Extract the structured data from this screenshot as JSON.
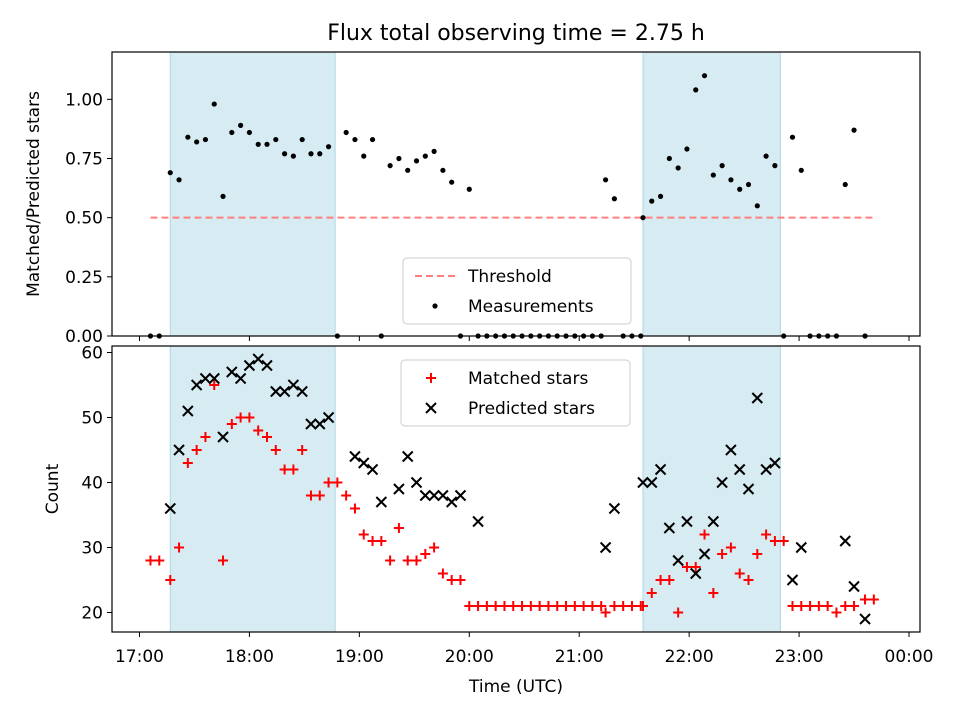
{
  "figure": {
    "title": "Flux total observing time = 2.75 h",
    "xlabel": "Time (UTC)"
  },
  "colors": {
    "shade": "#add8e6",
    "threshold": "#ff7f7f",
    "matched": "#ff0000",
    "predicted": "#000000",
    "measurement": "#000000"
  },
  "x_tick_labels": [
    "17:00",
    "18:00",
    "19:00",
    "20:00",
    "21:00",
    "22:00",
    "23:00",
    "00:00"
  ],
  "chart_data": [
    {
      "type": "scatter",
      "ylabel": "Matched/Predicted stars",
      "x_unit": "hours after 17:00 UTC",
      "xlim": [
        -0.25,
        7.1
      ],
      "ylim": [
        0,
        1.2
      ],
      "y_ticks": [
        "0.00",
        "0.25",
        "0.50",
        "0.75",
        "1.00"
      ],
      "y_tick_values": [
        0,
        0.25,
        0.5,
        0.75,
        1.0
      ],
      "shaded_spans": [
        [
          0.28,
          1.78
        ],
        [
          4.58,
          5.83
        ]
      ],
      "threshold": {
        "label": "Threshold",
        "value": 0.5,
        "x_range": [
          0.1,
          6.7
        ]
      },
      "legend": {
        "position": "lower center",
        "entries": [
          "Threshold",
          "Measurements"
        ]
      },
      "series": [
        {
          "name": "Measurements",
          "x": [
            0.1,
            0.18,
            0.28,
            0.36,
            0.44,
            0.52,
            0.6,
            0.68,
            0.76,
            0.84,
            0.92,
            1.0,
            1.08,
            1.16,
            1.24,
            1.32,
            1.4,
            1.48,
            1.56,
            1.64,
            1.72,
            1.8,
            1.88,
            1.96,
            2.04,
            2.12,
            2.2,
            2.28,
            2.36,
            2.44,
            2.52,
            2.6,
            2.68,
            2.76,
            2.84,
            2.92,
            3.0,
            3.08,
            3.16,
            3.24,
            3.32,
            3.4,
            3.48,
            3.56,
            3.64,
            3.72,
            3.8,
            3.88,
            3.96,
            4.04,
            4.12,
            4.2,
            4.24,
            4.32,
            4.4,
            4.48,
            4.56,
            4.58,
            4.66,
            4.74,
            4.82,
            4.9,
            4.98,
            5.06,
            5.14,
            5.22,
            5.3,
            5.38,
            5.46,
            5.54,
            5.62,
            5.7,
            5.78,
            5.86,
            5.94,
            6.02,
            6.1,
            6.18,
            6.26,
            6.34,
            6.42,
            6.5,
            6.6
          ],
          "y": [
            0,
            0,
            0.69,
            0.66,
            0.84,
            0.82,
            0.83,
            0.98,
            0.59,
            0.86,
            0.89,
            0.86,
            0.81,
            0.81,
            0.83,
            0.77,
            0.76,
            0.83,
            0.77,
            0.77,
            0.8,
            0,
            0.86,
            0.83,
            0.76,
            0.83,
            0,
            0.72,
            0.75,
            0.7,
            0.74,
            0.76,
            0.78,
            0.7,
            0.65,
            0,
            0.62,
            0,
            0,
            0,
            0,
            0,
            0,
            0,
            0,
            0,
            0,
            0,
            0,
            0,
            0,
            0,
            0.66,
            0.58,
            0,
            0,
            0,
            0.5,
            0.57,
            0.59,
            0.75,
            0.71,
            0.79,
            1.04,
            1.1,
            0.68,
            0.72,
            0.66,
            0.62,
            0.64,
            0.55,
            0.76,
            0.72,
            0,
            0.84,
            0.7,
            0,
            0,
            0,
            0,
            0.64,
            0.87,
            0
          ]
        }
      ]
    },
    {
      "type": "scatter",
      "ylabel": "Count",
      "x_unit": "hours after 17:00 UTC",
      "xlim": [
        -0.25,
        7.1
      ],
      "ylim": [
        17,
        61
      ],
      "y_ticks": [
        "20",
        "30",
        "40",
        "50",
        "60"
      ],
      "y_tick_values": [
        20,
        30,
        40,
        50,
        60
      ],
      "shaded_spans": [
        [
          0.28,
          1.78
        ],
        [
          4.58,
          5.83
        ]
      ],
      "legend": {
        "position": "upper center",
        "entries": [
          "Matched stars",
          "Predicted stars"
        ]
      },
      "series": [
        {
          "name": "Matched stars",
          "x": [
            0.1,
            0.18,
            0.28,
            0.36,
            0.44,
            0.52,
            0.6,
            0.68,
            0.76,
            0.84,
            0.92,
            1.0,
            1.08,
            1.16,
            1.24,
            1.32,
            1.4,
            1.48,
            1.56,
            1.64,
            1.72,
            1.8,
            1.88,
            1.96,
            2.04,
            2.12,
            2.2,
            2.28,
            2.36,
            2.44,
            2.52,
            2.6,
            2.68,
            2.76,
            2.84,
            2.92,
            3.0,
            3.08,
            3.16,
            3.24,
            3.32,
            3.4,
            3.48,
            3.56,
            3.64,
            3.72,
            3.8,
            3.88,
            3.96,
            4.04,
            4.12,
            4.2,
            4.24,
            4.32,
            4.4,
            4.48,
            4.56,
            4.58,
            4.66,
            4.74,
            4.82,
            4.9,
            4.98,
            5.06,
            5.14,
            5.22,
            5.3,
            5.38,
            5.46,
            5.54,
            5.62,
            5.7,
            5.78,
            5.86,
            5.94,
            6.02,
            6.1,
            6.18,
            6.26,
            6.34,
            6.42,
            6.5,
            6.6,
            6.68
          ],
          "y": [
            28,
            28,
            25,
            30,
            43,
            45,
            47,
            55,
            28,
            49,
            50,
            50,
            48,
            47,
            45,
            42,
            42,
            45,
            38,
            38,
            40,
            40,
            38,
            36,
            32,
            31,
            31,
            28,
            33,
            28,
            28,
            29,
            30,
            26,
            25,
            25,
            21,
            21,
            21,
            21,
            21,
            21,
            21,
            21,
            21,
            21,
            21,
            21,
            21,
            21,
            21,
            21,
            20,
            21,
            21,
            21,
            21,
            21,
            23,
            25,
            25,
            20,
            27,
            27,
            32,
            23,
            29,
            30,
            26,
            25,
            29,
            32,
            31,
            31,
            21,
            21,
            21,
            21,
            21,
            20,
            21,
            21,
            22,
            22
          ]
        },
        {
          "name": "Predicted stars",
          "x": [
            0.28,
            0.36,
            0.44,
            0.52,
            0.6,
            0.68,
            0.76,
            0.84,
            0.92,
            1.0,
            1.08,
            1.16,
            1.24,
            1.32,
            1.4,
            1.48,
            1.56,
            1.64,
            1.72,
            1.96,
            2.04,
            2.12,
            2.2,
            2.36,
            2.44,
            2.52,
            2.6,
            2.68,
            2.76,
            2.84,
            2.92,
            3.08,
            4.24,
            4.32,
            4.58,
            4.66,
            4.74,
            4.82,
            4.9,
            4.98,
            5.06,
            5.14,
            5.22,
            5.3,
            5.38,
            5.46,
            5.54,
            5.62,
            5.7,
            5.78,
            5.94,
            6.02,
            6.42,
            6.5,
            6.6
          ],
          "y": [
            36,
            45,
            51,
            55,
            56,
            56,
            47,
            57,
            56,
            58,
            59,
            58,
            54,
            54,
            55,
            54,
            49,
            49,
            50,
            44,
            43,
            42,
            37,
            39,
            44,
            40,
            38,
            38,
            38,
            37,
            38,
            34,
            30,
            36,
            40,
            40,
            42,
            33,
            28,
            34,
            26,
            29,
            34,
            40,
            45,
            42,
            39,
            53,
            42,
            43,
            25,
            30,
            31,
            24,
            19
          ]
        }
      ]
    }
  ]
}
